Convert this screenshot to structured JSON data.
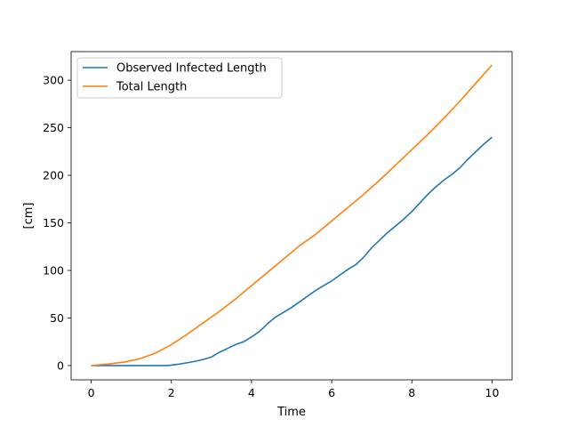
{
  "chart_data": {
    "type": "line",
    "title": "",
    "xlabel": "Time",
    "ylabel": "[cm]",
    "xlim": [
      -0.5,
      10.5
    ],
    "ylim": [
      -15,
      330
    ],
    "xticks": [
      0,
      2,
      4,
      6,
      8,
      10
    ],
    "yticks": [
      0,
      50,
      100,
      150,
      200,
      250,
      300
    ],
    "xtick_labels": [
      "0",
      "2",
      "4",
      "6",
      "8",
      "10"
    ],
    "ytick_labels": [
      "0",
      "50",
      "100",
      "150",
      "200",
      "250",
      "300"
    ],
    "grid": false,
    "legend_position": "upper-left",
    "series": [
      {
        "name": "Observed Infected Length",
        "color": "#1f77b4",
        "x": [
          0,
          0.5,
          1.0,
          1.5,
          1.9,
          2.0,
          2.2,
          2.4,
          2.6,
          2.8,
          3.0,
          3.2,
          3.4,
          3.6,
          3.8,
          4.0,
          4.2,
          4.4,
          4.6,
          4.8,
          5.0,
          5.2,
          5.4,
          5.6,
          5.8,
          6.0,
          6.2,
          6.4,
          6.6,
          6.8,
          7.0,
          7.2,
          7.4,
          7.6,
          7.8,
          8.0,
          8.2,
          8.4,
          8.6,
          8.8,
          9.0,
          9.2,
          9.4,
          9.6,
          9.8,
          10.0
        ],
        "y": [
          0,
          0,
          0,
          0,
          0,
          0.5,
          1.5,
          3,
          4.5,
          6.5,
          9,
          14,
          18,
          22,
          25,
          30,
          36,
          44,
          51,
          56,
          61,
          67,
          73,
          79,
          84,
          89,
          95,
          101,
          106,
          114,
          124,
          132,
          140,
          147,
          154,
          162,
          171,
          180,
          188,
          195,
          201,
          208,
          217,
          225,
          233,
          240
        ]
      },
      {
        "name": "Total Length",
        "color": "#ff7f0e",
        "x": [
          0,
          0.4,
          0.8,
          1.2,
          1.6,
          2.0,
          2.4,
          2.8,
          3.2,
          3.6,
          4.0,
          4.4,
          4.8,
          5.2,
          5.6,
          6.0,
          6.4,
          6.8,
          7.2,
          7.6,
          8.0,
          8.4,
          8.8,
          9.2,
          9.6,
          10.0
        ],
        "y": [
          0,
          1.5,
          3.5,
          7,
          13,
          22,
          33,
          45,
          57,
          70,
          84,
          98,
          112,
          126,
          138,
          152,
          166,
          180,
          195,
          211,
          227,
          243,
          260,
          278,
          297,
          316
        ]
      }
    ]
  }
}
